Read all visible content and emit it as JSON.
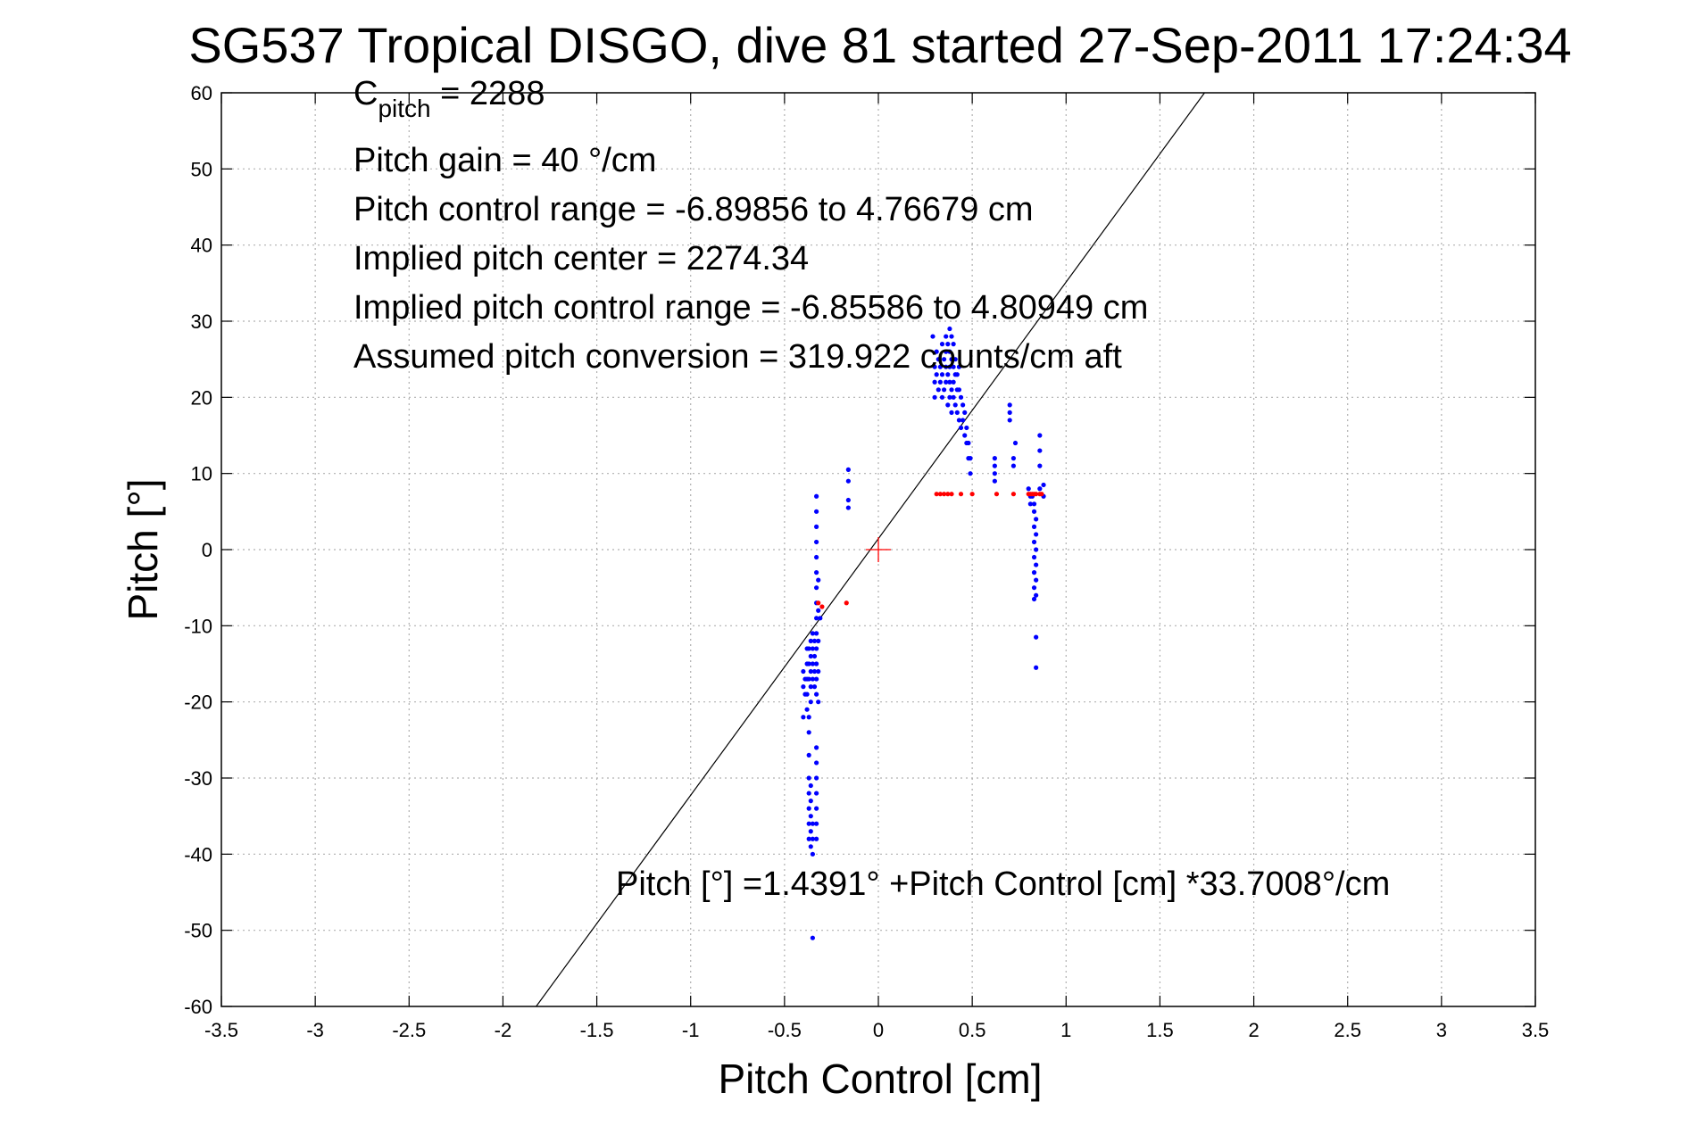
{
  "chart_data": {
    "type": "scatter",
    "title": "SG537 Tropical DISGO, dive 81 started 27-Sep-2011 17:24:34",
    "xlabel": "Pitch Control [cm]",
    "ylabel": "Pitch [°]",
    "xlim": [
      -3.5,
      3.5
    ],
    "ylim": [
      -60,
      60
    ],
    "xticks": [
      -3.5,
      -3,
      -2.5,
      -2,
      -1.5,
      -1,
      -0.5,
      0,
      0.5,
      1,
      1.5,
      2,
      2.5,
      3,
      3.5
    ],
    "xtick_labels": [
      "-3.5",
      "-3",
      "-2.5",
      "-2",
      "-1.5",
      "-1",
      "-0.5",
      "0",
      "0.5",
      "1",
      "1.5",
      "2",
      "2.5",
      "3",
      "3.5"
    ],
    "yticks": [
      -60,
      -50,
      -40,
      -30,
      -20,
      -10,
      0,
      10,
      20,
      30,
      40,
      50,
      60
    ],
    "ytick_labels": [
      "-60",
      "-50",
      "-40",
      "-30",
      "-20",
      "-10",
      "0",
      "10",
      "20",
      "30",
      "40",
      "50",
      "60"
    ],
    "grid": true,
    "annotations": {
      "c_pitch_main": "C",
      "c_pitch_sub": "pitch",
      "c_pitch_value": " = 2288",
      "pitch_gain": "Pitch gain = 40 °/cm",
      "pitch_control_range": "Pitch control range = -6.89856 to 4.76679 cm",
      "implied_pitch_center": "Implied pitch center = 2274.34",
      "implied_control_range": "Implied pitch control range = -6.85586 to 4.80949 cm",
      "assumed_conversion": "Assumed pitch conversion = 319.922 counts/cm aft",
      "fit_equation": "Pitch [°] =1.4391° +Pitch Control [cm] *33.7008°/cm"
    },
    "fit_line": {
      "intercept": 1.4391,
      "slope": 33.7008
    },
    "center_marker": {
      "x": 0,
      "y": 0,
      "color": "#ff0000"
    },
    "colors": {
      "blue": "#0000ff",
      "red": "#ff0000",
      "fit": "#000000"
    },
    "series": [
      {
        "color": "#0000ff",
        "points": [
          [
            -0.33,
            7
          ],
          [
            -0.33,
            5
          ],
          [
            -0.33,
            3
          ],
          [
            -0.33,
            1
          ],
          [
            -0.33,
            -1
          ],
          [
            -0.33,
            -3
          ],
          [
            -0.33,
            -5
          ],
          [
            -0.33,
            -7
          ],
          [
            -0.33,
            -9
          ],
          [
            -0.33,
            -11
          ],
          [
            -0.33,
            -13
          ],
          [
            -0.33,
            -15
          ],
          [
            -0.33,
            -17
          ],
          [
            -0.33,
            -19
          ],
          [
            -0.32,
            -4
          ],
          [
            -0.32,
            -8
          ],
          [
            -0.32,
            -12
          ],
          [
            -0.32,
            -16
          ],
          [
            -0.32,
            -20
          ],
          [
            -0.31,
            -9
          ],
          [
            -0.34,
            -12
          ],
          [
            -0.34,
            -14
          ],
          [
            -0.34,
            -16
          ],
          [
            -0.34,
            -18
          ],
          [
            -0.35,
            -11
          ],
          [
            -0.35,
            -13
          ],
          [
            -0.35,
            -15
          ],
          [
            -0.35,
            -17
          ],
          [
            -0.36,
            -12
          ],
          [
            -0.36,
            -14
          ],
          [
            -0.36,
            -16
          ],
          [
            -0.36,
            -18
          ],
          [
            -0.36,
            -20
          ],
          [
            -0.37,
            -13
          ],
          [
            -0.37,
            -15
          ],
          [
            -0.37,
            -17
          ],
          [
            -0.38,
            -13
          ],
          [
            -0.38,
            -15
          ],
          [
            -0.38,
            -17
          ],
          [
            -0.38,
            -19
          ],
          [
            -0.38,
            -21
          ],
          [
            -0.39,
            -17
          ],
          [
            -0.39,
            -19
          ],
          [
            -0.4,
            -16
          ],
          [
            -0.4,
            -18
          ],
          [
            -0.4,
            -22
          ],
          [
            -0.37,
            -22
          ],
          [
            -0.37,
            -24
          ],
          [
            -0.37,
            -27
          ],
          [
            -0.37,
            -30
          ],
          [
            -0.37,
            -32
          ],
          [
            -0.37,
            -34
          ],
          [
            -0.37,
            -36
          ],
          [
            -0.37,
            -38
          ],
          [
            -0.36,
            -31
          ],
          [
            -0.36,
            -33
          ],
          [
            -0.36,
            -35
          ],
          [
            -0.36,
            -37
          ],
          [
            -0.36,
            -39
          ],
          [
            -0.35,
            -36
          ],
          [
            -0.35,
            -38
          ],
          [
            -0.35,
            -40
          ],
          [
            -0.33,
            -26
          ],
          [
            -0.33,
            -28
          ],
          [
            -0.33,
            -30
          ],
          [
            -0.33,
            -32
          ],
          [
            -0.33,
            -34
          ],
          [
            -0.33,
            -36
          ],
          [
            -0.33,
            -38
          ],
          [
            -0.35,
            -51
          ],
          [
            -0.16,
            10.5
          ],
          [
            -0.16,
            9
          ],
          [
            -0.16,
            6.5
          ],
          [
            -0.16,
            5.5
          ],
          [
            0.29,
            28
          ],
          [
            0.3,
            24
          ],
          [
            0.3,
            22
          ],
          [
            0.3,
            20
          ],
          [
            0.31,
            26
          ],
          [
            0.31,
            23
          ],
          [
            0.32,
            21
          ],
          [
            0.32,
            25
          ],
          [
            0.33,
            24
          ],
          [
            0.33,
            22
          ],
          [
            0.34,
            27
          ],
          [
            0.34,
            23
          ],
          [
            0.34,
            20
          ],
          [
            0.35,
            25
          ],
          [
            0.35,
            21
          ],
          [
            0.36,
            28
          ],
          [
            0.36,
            26
          ],
          [
            0.36,
            24
          ],
          [
            0.36,
            22
          ],
          [
            0.37,
            27
          ],
          [
            0.37,
            23
          ],
          [
            0.37,
            19
          ],
          [
            0.38,
            29
          ],
          [
            0.38,
            26
          ],
          [
            0.38,
            24
          ],
          [
            0.38,
            22
          ],
          [
            0.38,
            20
          ],
          [
            0.39,
            28
          ],
          [
            0.39,
            25
          ],
          [
            0.39,
            21
          ],
          [
            0.39,
            18
          ],
          [
            0.4,
            27
          ],
          [
            0.4,
            24
          ],
          [
            0.4,
            22
          ],
          [
            0.4,
            20
          ],
          [
            0.41,
            25
          ],
          [
            0.41,
            23
          ],
          [
            0.41,
            19
          ],
          [
            0.42,
            23
          ],
          [
            0.42,
            21
          ],
          [
            0.42,
            18
          ],
          [
            0.43,
            24
          ],
          [
            0.43,
            21
          ],
          [
            0.43,
            17
          ],
          [
            0.44,
            20
          ],
          [
            0.44,
            16
          ],
          [
            0.45,
            19
          ],
          [
            0.45,
            17
          ],
          [
            0.46,
            18
          ],
          [
            0.46,
            15
          ],
          [
            0.47,
            16
          ],
          [
            0.47,
            14
          ],
          [
            0.48,
            14
          ],
          [
            0.48,
            12
          ],
          [
            0.49,
            12
          ],
          [
            0.49,
            10
          ],
          [
            0.62,
            12
          ],
          [
            0.62,
            11
          ],
          [
            0.62,
            10
          ],
          [
            0.62,
            9
          ],
          [
            0.7,
            19
          ],
          [
            0.7,
            18
          ],
          [
            0.7,
            17
          ],
          [
            0.72,
            12
          ],
          [
            0.72,
            11
          ],
          [
            0.73,
            14
          ],
          [
            0.8,
            8
          ],
          [
            0.81,
            7
          ],
          [
            0.81,
            6
          ],
          [
            0.82,
            7
          ],
          [
            0.83,
            6
          ],
          [
            0.83,
            5
          ],
          [
            0.83,
            3
          ],
          [
            0.83,
            1
          ],
          [
            0.83,
            -1
          ],
          [
            0.83,
            -3
          ],
          [
            0.83,
            -5
          ],
          [
            0.83,
            -6.5
          ],
          [
            0.84,
            4
          ],
          [
            0.84,
            2
          ],
          [
            0.84,
            0
          ],
          [
            0.84,
            -2
          ],
          [
            0.84,
            -4
          ],
          [
            0.84,
            -6
          ],
          [
            0.84,
            -11.5
          ],
          [
            0.84,
            -15.5
          ],
          [
            0.86,
            15
          ],
          [
            0.86,
            13
          ],
          [
            0.86,
            11
          ],
          [
            0.86,
            8
          ],
          [
            0.88,
            8.5
          ],
          [
            0.88,
            7
          ]
        ]
      },
      {
        "color": "#ff0000",
        "points": [
          [
            0.31,
            7.3
          ],
          [
            0.33,
            7.3
          ],
          [
            0.35,
            7.3
          ],
          [
            0.37,
            7.3
          ],
          [
            0.39,
            7.3
          ],
          [
            0.44,
            7.3
          ],
          [
            0.5,
            7.3
          ],
          [
            0.63,
            7.3
          ],
          [
            0.72,
            7.3
          ],
          [
            0.8,
            7.3
          ],
          [
            0.81,
            7.3
          ],
          [
            0.82,
            7.3
          ],
          [
            0.83,
            7.3
          ],
          [
            0.84,
            7.3
          ],
          [
            0.86,
            7.3
          ],
          [
            0.87,
            7.3
          ],
          [
            -0.32,
            -7
          ],
          [
            -0.3,
            -7.5
          ],
          [
            -0.17,
            -7
          ]
        ]
      }
    ]
  }
}
